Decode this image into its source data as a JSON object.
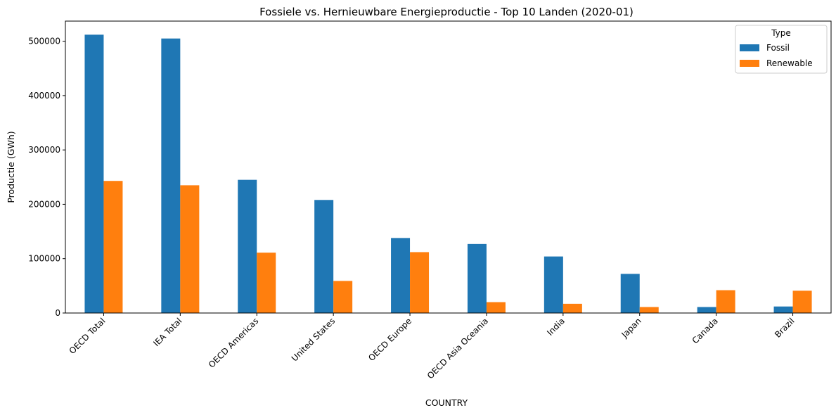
{
  "chart_data": {
    "type": "bar",
    "title": "Fossiele vs. Hernieuwbare Energieproductie - Top 10 Landen (2020-01)",
    "xlabel": "COUNTRY",
    "ylabel": "Productie (GWh)",
    "ylim": [
      0,
      537000
    ],
    "yticks": [
      "0",
      "100000",
      "200000",
      "300000",
      "400000",
      "500000"
    ],
    "categories": [
      "OECD Total",
      "IEA Total",
      "OECD Americas",
      "United States",
      "OECD Europe",
      "OECD Asia Oceania",
      "India",
      "Japan",
      "Canada",
      "Brazil"
    ],
    "legend_title": "Type",
    "legend_position": "top-right",
    "grid": false,
    "series": [
      {
        "name": "Fossil",
        "color": "#1f77b4",
        "values": [
          512000,
          505000,
          245000,
          208000,
          138000,
          127000,
          104000,
          72000,
          11000,
          12000
        ]
      },
      {
        "name": "Renewable",
        "color": "#ff7f0e",
        "values": [
          243000,
          235000,
          111000,
          59000,
          112000,
          20000,
          17000,
          11000,
          42000,
          41000
        ]
      }
    ]
  }
}
